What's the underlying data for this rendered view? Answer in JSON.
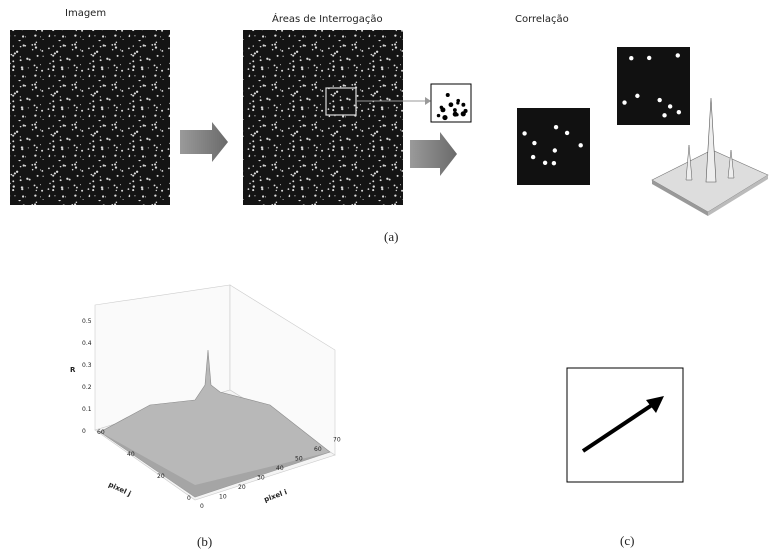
{
  "panel_a": {
    "image_title": "Imagem",
    "areas_title": "Áreas de Interrogação",
    "correlation_title": "Correlação",
    "caption": "(a)"
  },
  "panel_b": {
    "z_label": "R",
    "x_label": "pixel i",
    "y_label": "pixel j",
    "z_ticks": [
      "0",
      "0.1",
      "0.2",
      "0.3",
      "0.4",
      "0.5"
    ],
    "x_ticks": [
      "0",
      "10",
      "20",
      "30",
      "40",
      "50",
      "60",
      "70"
    ],
    "y_ticks": [
      "0",
      "20",
      "40",
      "60"
    ],
    "caption": "(b)"
  },
  "panel_c": {
    "caption": "(c)"
  }
}
